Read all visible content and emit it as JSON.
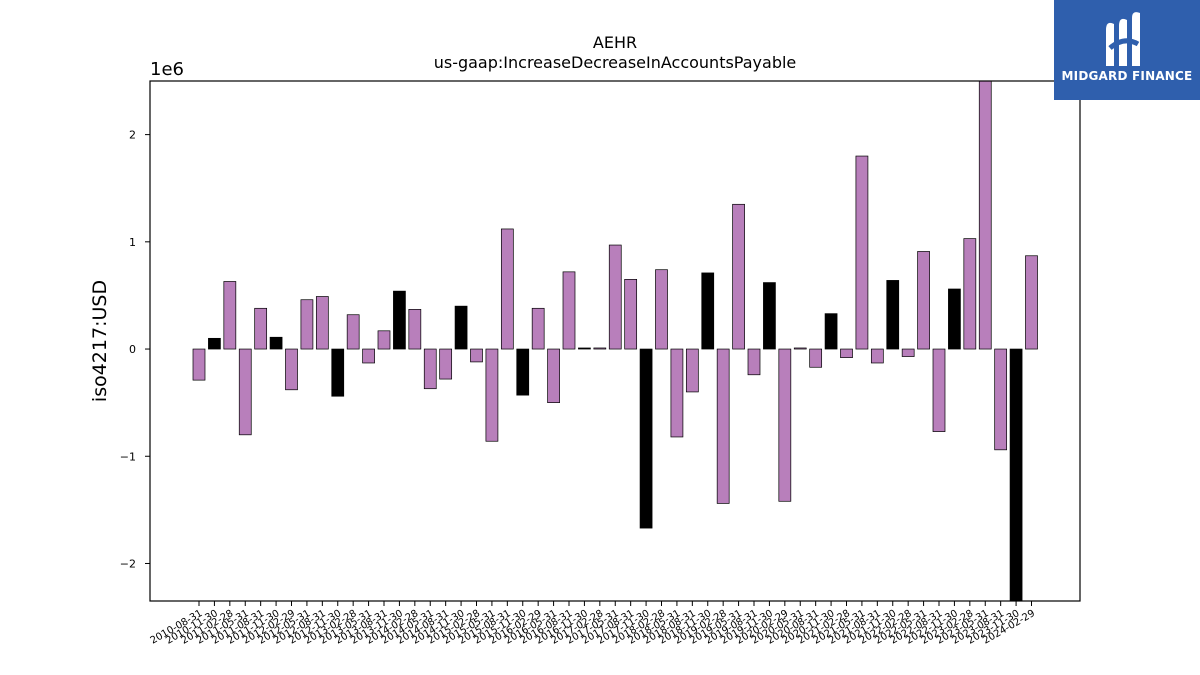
{
  "chart_data": {
    "type": "bar",
    "title": "AEHR",
    "subtitle": "us-gaap:IncreaseDecreaseInAccountsPayable",
    "ylabel": "iso4217:USD",
    "y_scale_label": "1e6",
    "xlabel": "",
    "ylim": [
      -2.35,
      2.5
    ],
    "y_ticks": [
      -2,
      -1,
      0,
      1,
      2
    ],
    "y_tick_labels": [
      "−2",
      "−1",
      "0",
      "1",
      "2"
    ],
    "grid": false,
    "legend": "none",
    "colors": {
      "purple": "#b87fbb",
      "black": "#000000",
      "edge": "#000000"
    },
    "categories": [
      "2010-08-31",
      "2010-11-30",
      "2011-02-28",
      "2011-05-31",
      "2011-08-31",
      "2011-11-30",
      "2012-02-29",
      "2012-05-31",
      "2012-08-31",
      "2012-11-30",
      "2013-02-28",
      "2013-05-31",
      "2013-08-31",
      "2013-11-30",
      "2014-02-28",
      "2014-05-31",
      "2014-08-31",
      "2014-11-30",
      "2015-02-28",
      "2015-05-31",
      "2015-08-31",
      "2015-11-30",
      "2016-02-29",
      "2016-05-31",
      "2016-08-31",
      "2016-11-30",
      "2017-02-28",
      "2017-05-31",
      "2017-08-31",
      "2017-11-30",
      "2018-02-28",
      "2018-05-31",
      "2018-08-31",
      "2018-11-30",
      "2019-02-28",
      "2019-05-31",
      "2019-08-31",
      "2019-11-30",
      "2020-02-29",
      "2020-05-31",
      "2020-08-31",
      "2020-11-30",
      "2021-02-28",
      "2021-05-31",
      "2021-08-31",
      "2021-11-30",
      "2022-02-28",
      "2022-05-31",
      "2022-08-31",
      "2022-11-30",
      "2023-02-28",
      "2023-05-31",
      "2023-08-31",
      "2023-11-30",
      "2024-02-29"
    ],
    "values": [
      -0.29,
      0.1,
      0.63,
      -0.8,
      0.38,
      0.11,
      -0.38,
      0.46,
      0.49,
      -0.44,
      0.32,
      -0.13,
      0.17,
      0.54,
      0.37,
      -0.37,
      -0.28,
      0.4,
      -0.12,
      -0.86,
      1.12,
      -0.43,
      0.38,
      -0.5,
      0.72,
      0.01,
      0.01,
      0.97,
      0.65,
      -1.67,
      0.74,
      -0.82,
      -0.4,
      0.71,
      -1.44,
      1.35,
      -0.24,
      0.62,
      -1.42,
      0.01,
      -0.17,
      0.33,
      -0.08,
      1.8,
      -0.13,
      0.64,
      -0.07,
      0.91,
      -0.77,
      0.56,
      1.03,
      2.5,
      -0.94,
      -2.35,
      0.87
    ],
    "bar_colors": [
      "purple",
      "black",
      "purple",
      "purple",
      "purple",
      "black",
      "purple",
      "purple",
      "purple",
      "black",
      "purple",
      "purple",
      "purple",
      "black",
      "purple",
      "purple",
      "purple",
      "black",
      "purple",
      "purple",
      "purple",
      "black",
      "purple",
      "purple",
      "purple",
      "black",
      "purple",
      "purple",
      "purple",
      "black",
      "purple",
      "purple",
      "purple",
      "black",
      "purple",
      "purple",
      "purple",
      "black",
      "purple",
      "purple",
      "purple",
      "black",
      "purple",
      "purple",
      "purple",
      "black",
      "purple",
      "purple",
      "purple",
      "black",
      "purple",
      "purple",
      "purple",
      "black",
      "purple"
    ]
  },
  "logo": {
    "text": "MIDGARD FINANCE",
    "bg_color": "#2f5fad"
  }
}
